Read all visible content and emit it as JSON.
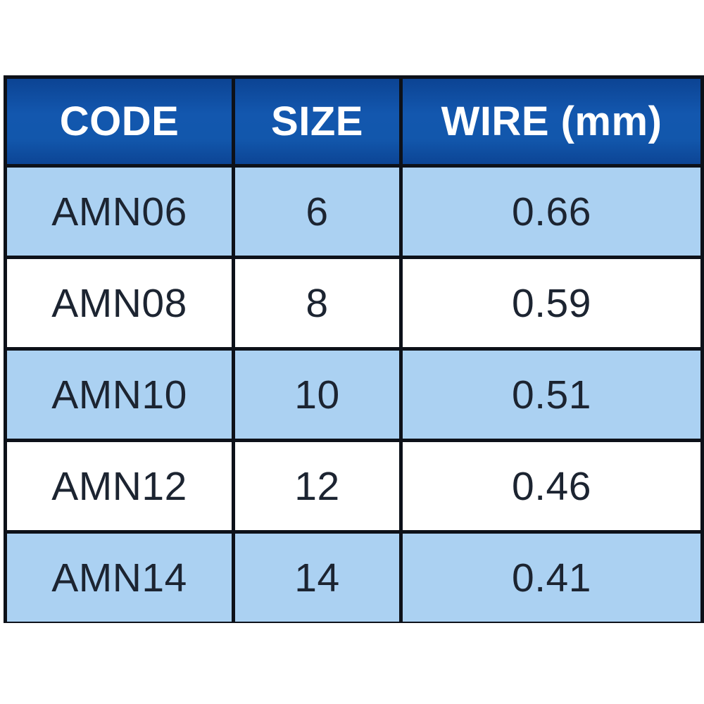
{
  "table": {
    "columns": [
      {
        "key": "code",
        "label": "CODE"
      },
      {
        "key": "size",
        "label": "SIZE"
      },
      {
        "key": "wire",
        "label": "WIRE (mm)"
      }
    ],
    "rows": [
      {
        "code": "AMN06",
        "size": "6",
        "wire": "0.66"
      },
      {
        "code": "AMN08",
        "size": "8",
        "wire": "0.59"
      },
      {
        "code": "AMN10",
        "size": "10",
        "wire": "0.51"
      },
      {
        "code": "AMN12",
        "size": "12",
        "wire": "0.46"
      },
      {
        "code": "AMN14",
        "size": "14",
        "wire": "0.41"
      }
    ],
    "colors": {
      "header_bg": "#1257ac",
      "header_text": "#ffffff",
      "row_alt_bg": "#abd1f2",
      "row_bg": "#ffffff",
      "border": "#0d1119",
      "cell_text": "#1c2431"
    }
  }
}
